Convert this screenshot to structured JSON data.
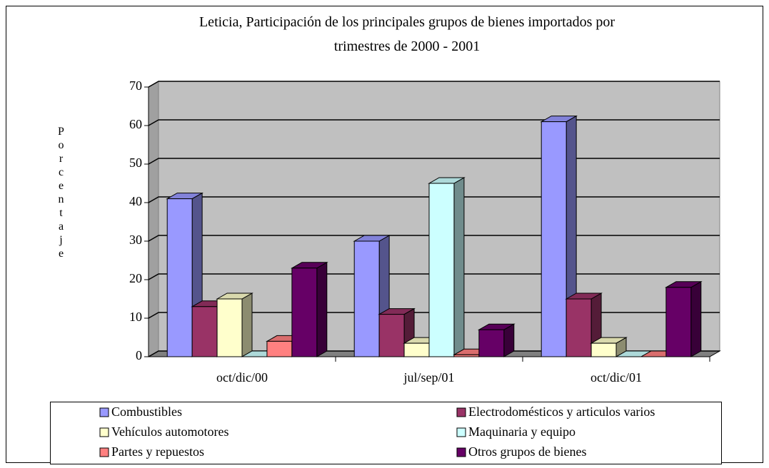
{
  "chart_data": {
    "type": "bar3d",
    "title": [
      "Leticia, Participación de los principales grupos de bienes importados por",
      "trimestres de 2000 - 2001"
    ],
    "y_label": "Porcentaje",
    "categories": [
      "oct/dic/00",
      "jul/sep/01",
      "oct/dic/01"
    ],
    "series": [
      {
        "name": "Combustibles",
        "color": "#9999ff",
        "values": [
          41,
          30,
          61
        ]
      },
      {
        "name": "Electrodomésticos y articulos varios",
        "color": "#993366",
        "values": [
          13,
          11,
          15
        ]
      },
      {
        "name": "Vehículos automotores",
        "color": "#ffffcc",
        "values": [
          15,
          3.5,
          3.5
        ]
      },
      {
        "name": "Maquinaria y equipo",
        "color": "#ccffff",
        "values": [
          0,
          45,
          0
        ]
      },
      {
        "name": "Partes y repuestos",
        "color": "#ff8080",
        "values": [
          4,
          0.5,
          0
        ]
      },
      {
        "name": "Otros grupos de bienes",
        "color": "#660066",
        "values": [
          23,
          7,
          18
        ]
      }
    ],
    "ylim": [
      0,
      70
    ],
    "yticks": [
      0,
      10,
      20,
      30,
      40,
      50,
      60,
      70
    ],
    "grid": true
  }
}
